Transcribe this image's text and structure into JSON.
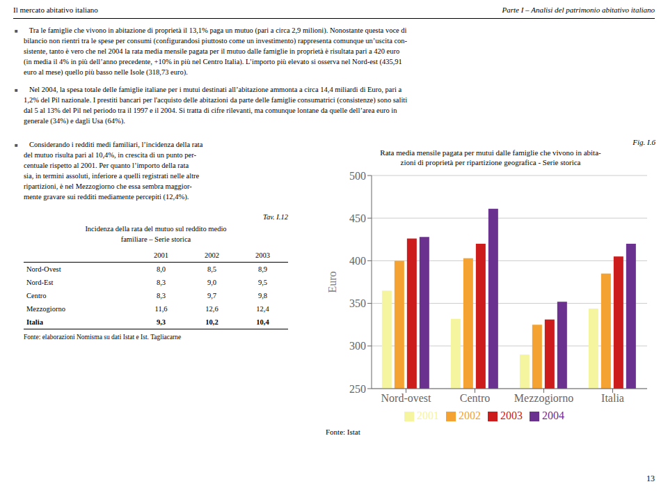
{
  "chart_data": [
    {
      "type": "bar",
      "title": "Rata media mensile pagata per mutui dalle famiglie che vivono in abita-\nzioni di proprietà per ripartizione geografica - Serie storica",
      "annotations": [
        "Fig. I.6",
        "Fonte: Istat"
      ],
      "categories": [
        "Nord-ovest",
        "Centro",
        "Mezzogiorno",
        "Italia"
      ],
      "series": [
        {
          "name": "2001",
          "color": "#f5f5a0",
          "values": [
            365,
            332,
            290,
            344
          ]
        },
        {
          "name": "2002",
          "color": "#f4a332",
          "values": [
            400,
            403,
            325,
            385
          ]
        },
        {
          "name": "2003",
          "color": "#cc1c1c",
          "values": [
            426,
            420,
            331,
            405
          ]
        },
        {
          "name": "2004",
          "color": "#6b318e",
          "values": [
            428,
            461,
            352,
            420
          ]
        }
      ],
      "y_label": "Euro",
      "ylim": [
        250,
        500
      ],
      "yticks": [
        250,
        300,
        350,
        400,
        450,
        500
      ],
      "grid": true
    },
    {
      "type": "table",
      "title": "Tav. I.12",
      "subtitle": "Incidenza della rata del mutuo sul reddito medio\nfamiliare – Serie storica",
      "columns": [
        "2001",
        "2002",
        "2003"
      ],
      "rows": [
        [
          "Nord-Ovest",
          "8,0",
          "8,5",
          "8,9"
        ],
        [
          "Nord-Est",
          "8,3",
          "9,0",
          "9,5"
        ],
        [
          "Centro",
          "8,3",
          "9,7",
          "9,8"
        ],
        [
          "Mezzogiorno",
          "11,6",
          "12,6",
          "12,4"
        ],
        [
          "Italia",
          "9,3",
          "10,2",
          "10,4"
        ]
      ],
      "annotations": [
        "Fonte: elaborazioni Nomisma su dati Istat e Ist. Tagliacarne"
      ]
    },
    {
      "type": "text",
      "header": [
        "Il mercato abitativo italiano",
        "Parte I – Analisi del patrimonio abitativo italiano"
      ],
      "page_number": "13",
      "bullet": "■",
      "paragraphs": [
        [
          "   Tra le famiglie che vivono in abitazione di proprietà il 13,1% paga un mutuo (pari a circa 2,9 milioni). Nonostante questa voce di",
          "bilancio non rientri tra le spese per consumi (configurandosi piuttosto come un investimento) rappresenta comunque un’uscita con-",
          "sistente, tanto è vero che nel 2004 la rata media mensile pagata per il mutuo dalle famiglie in proprietà è risultata pari a 420 euro",
          "(in media il 4% in più dell’anno precedente, +10% in più nel Centro Italia). L’importo più elevato si osserva nel Nord-est (435,91",
          "euro al mese) quello più basso nelle Isole (318,73 euro)."
        ],
        [
          "   Nel 2004, la spesa totale delle famiglie italiane per i mutui destinati all’abitazione ammonta a circa 14,4 miliardi di Euro, pari a",
          "1,2% del Pil nazionale. I prestiti bancari per l'acquisto delle abitazioni da parte delle famiglie consumatrici (consistenze) sono saliti",
          "dal 5 al 13% del Pil nel periodo tra il 1997 e il 2004. Si tratta di cifre rilevanti, ma comunque lontane da quelle dell’area euro in",
          "generale (34%) e dagli Usa (64%)."
        ],
        [
          "   Considerando i redditi medi familiari, l’incidenza della rata",
          "del mutuo risulta pari al 10,4%, in crescita di un punto per-",
          "centuale rispetto al 2001. Per quanto l’importo della rata",
          "sia, in termini assoluti, inferiore a quelli registrati nelle altre",
          "ripartizioni, è nel Mezzogiorno che essa sembra maggior-",
          "mente gravare sui redditi mediamente percepiti (12,4%)."
        ]
      ]
    }
  ]
}
